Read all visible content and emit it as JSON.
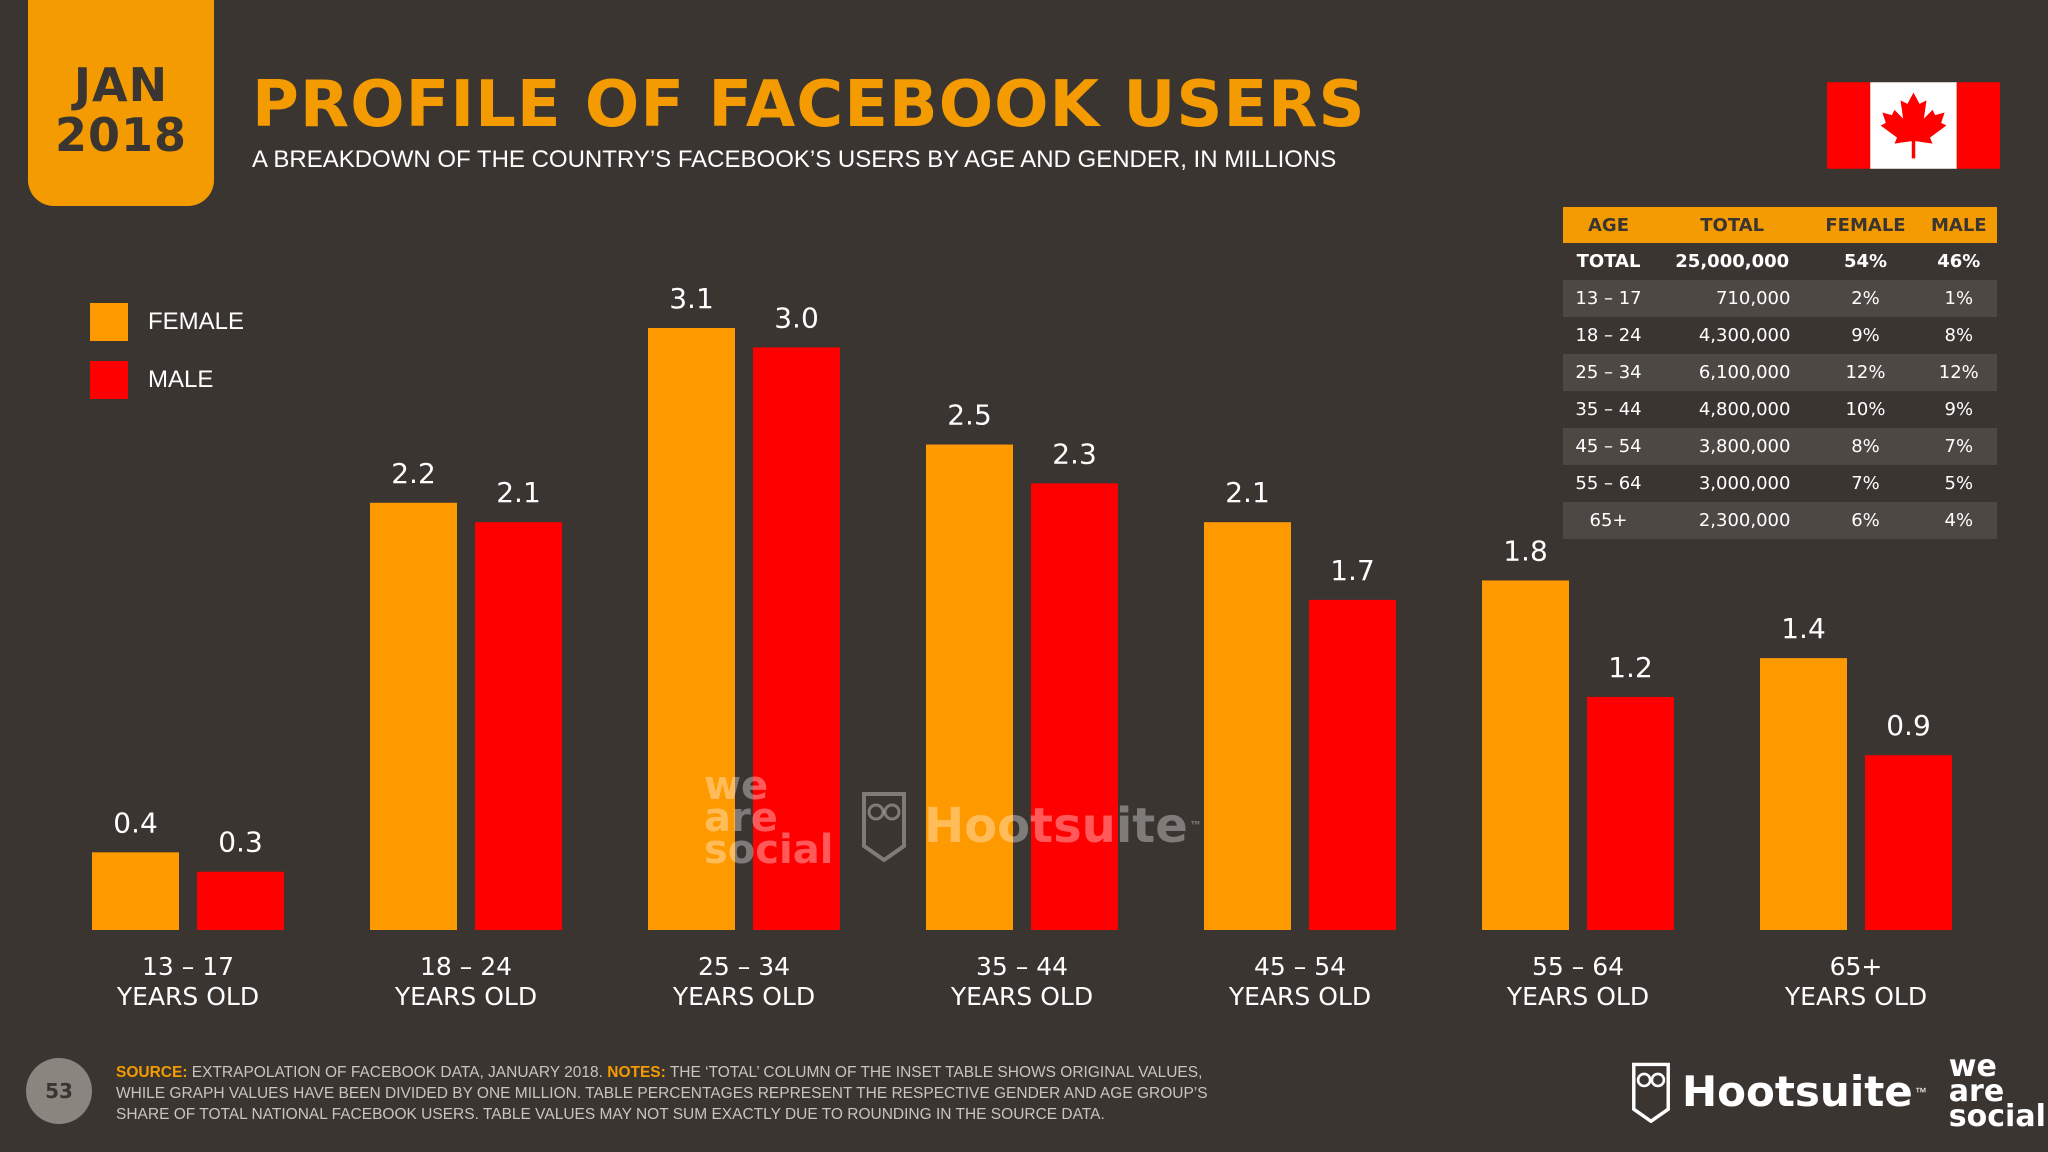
{
  "badge": {
    "month": "JAN",
    "year": "2018"
  },
  "title": "PROFILE OF FACEBOOK USERS",
  "subtitle": "A BREAKDOWN OF THE COUNTRY’S FACEBOOK’S USERS BY AGE AND GENDER, IN MILLIONS",
  "flag": {
    "icon": "canada-flag-icon",
    "red": "#ff0000",
    "white": "#ffffff"
  },
  "colors": {
    "female": "#ff9900",
    "male": "#ff0000",
    "accent": "#f39b00",
    "background": "#3b3532"
  },
  "legend": {
    "female": "FEMALE",
    "male": "MALE"
  },
  "chart_data": {
    "type": "bar",
    "categories": [
      [
        "13 – 17",
        "YEARS OLD"
      ],
      [
        "18 – 24",
        "YEARS OLD"
      ],
      [
        "25 – 34",
        "YEARS OLD"
      ],
      [
        "35 – 44",
        "YEARS OLD"
      ],
      [
        "45 – 54",
        "YEARS OLD"
      ],
      [
        "55 – 64",
        "YEARS OLD"
      ],
      [
        "65+",
        "YEARS OLD"
      ]
    ],
    "series": [
      {
        "name": "FEMALE",
        "color": "#ff9900",
        "values": [
          0.4,
          2.2,
          3.1,
          2.5,
          2.1,
          1.8,
          1.4
        ],
        "labels": [
          "0.4",
          "2.2",
          "3.1",
          "2.5",
          "2.1",
          "1.8",
          "1.4"
        ]
      },
      {
        "name": "MALE",
        "color": "#ff0000",
        "values": [
          0.3,
          2.1,
          3.0,
          2.3,
          1.7,
          1.2,
          0.9
        ],
        "labels": [
          "0.3",
          "2.1",
          "3.0",
          "2.3",
          "1.7",
          "1.2",
          "0.9"
        ]
      }
    ],
    "ylim": [
      0,
      3.1
    ],
    "grid": false,
    "legend_position": "top-left"
  },
  "table": {
    "headers": [
      "AGE",
      "TOTAL",
      "FEMALE",
      "MALE"
    ],
    "total_row": [
      "TOTAL",
      "25,000,000",
      "54%",
      "46%"
    ],
    "rows": [
      [
        "13 – 17",
        "710,000",
        "2%",
        "1%"
      ],
      [
        "18 – 24",
        "4,300,000",
        "9%",
        "8%"
      ],
      [
        "25 – 34",
        "6,100,000",
        "12%",
        "12%"
      ],
      [
        "35 – 44",
        "4,800,000",
        "10%",
        "9%"
      ],
      [
        "45 – 54",
        "3,800,000",
        "8%",
        "7%"
      ],
      [
        "55 – 64",
        "3,000,000",
        "7%",
        "5%"
      ],
      [
        "65+",
        "2,300,000",
        "6%",
        "4%"
      ]
    ]
  },
  "watermark": {
    "we_are_social": [
      "we",
      "are",
      "social"
    ],
    "hootsuite": "Hootsuite",
    "tm": "™",
    "icon": "owl-icon"
  },
  "footer": {
    "page_number": "53",
    "source_label": "SOURCE:",
    "source_text": " EXTRAPOLATION OF FACEBOOK DATA, JANUARY 2018. ",
    "notes_label": "NOTES:",
    "notes_text": " THE ‘TOTAL’ COLUMN OF THE INSET TABLE SHOWS ORIGINAL VALUES, WHILE GRAPH VALUES HAVE BEEN DIVIDED BY ONE MILLION. TABLE PERCENTAGES REPRESENT THE RESPECTIVE GENDER AND AGE GROUP’S SHARE OF TOTAL NATIONAL FACEBOOK USERS. TABLE VALUES MAY NOT SUM EXACTLY DUE TO ROUNDING IN THE SOURCE DATA.",
    "hootsuite": "Hootsuite",
    "tm": "™",
    "we_are_social": [
      "we",
      "are",
      "social"
    ]
  }
}
